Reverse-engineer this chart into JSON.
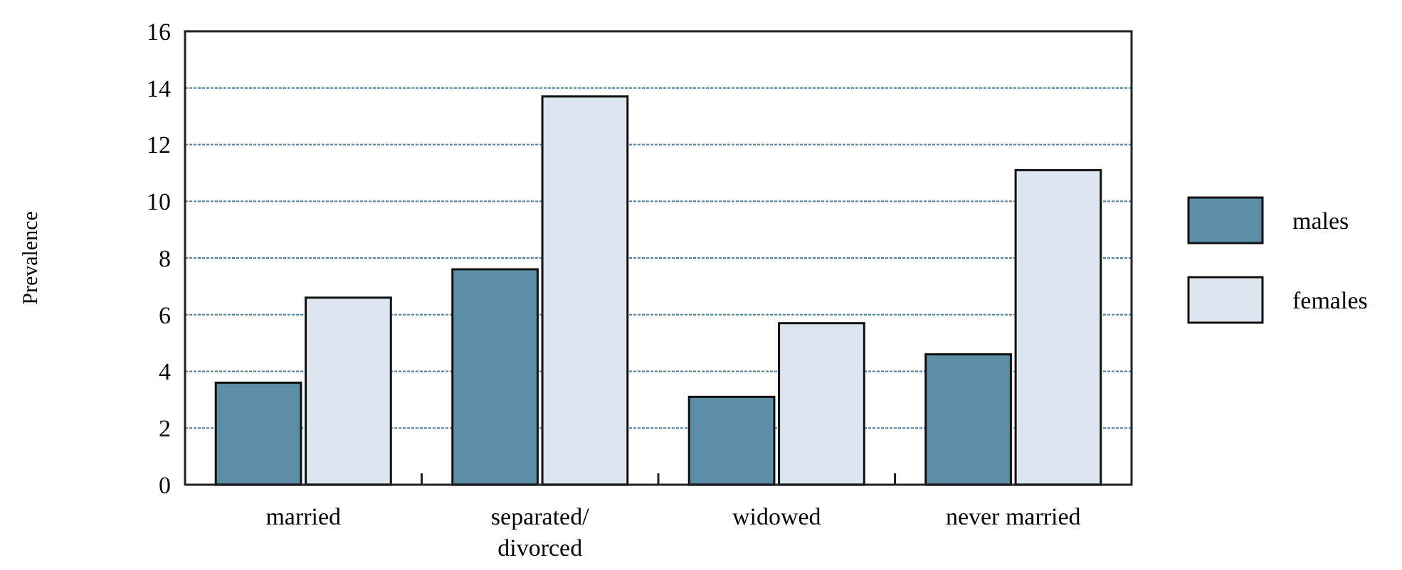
{
  "chart_data": {
    "type": "bar",
    "ylabel": "Prevalence",
    "categories": [
      "married",
      "separated/\ndivorced",
      "widowed",
      "never married"
    ],
    "series": [
      {
        "name": "males",
        "color": "#5b8fa8",
        "values": [
          3.6,
          7.6,
          3.1,
          4.6
        ]
      },
      {
        "name": "females",
        "color": "#dce6f0",
        "values": [
          6.6,
          13.7,
          5.7,
          11.1
        ]
      }
    ],
    "ylim": [
      0,
      16
    ],
    "yticks": [
      0,
      2,
      4,
      6,
      8,
      10,
      12,
      14,
      16
    ],
    "grid": "y",
    "legend": "right"
  }
}
